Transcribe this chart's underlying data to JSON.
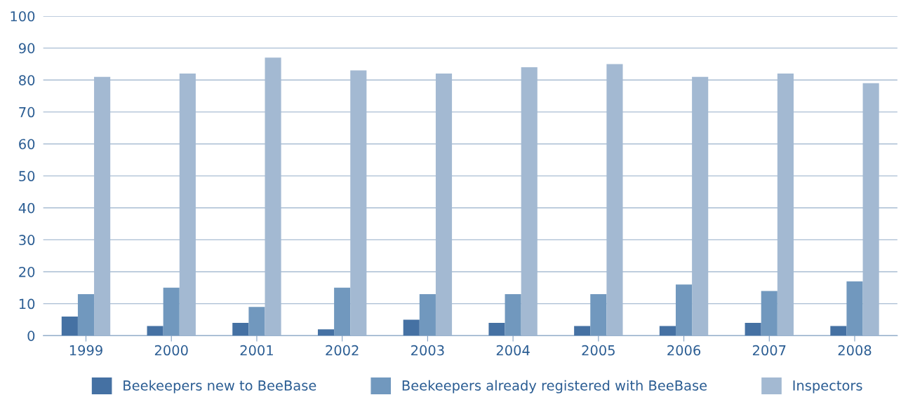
{
  "chart_data": {
    "type": "bar",
    "categories": [
      "1999",
      "2000",
      "2001",
      "2002",
      "2003",
      "2004",
      "2005",
      "2006",
      "2007",
      "2008"
    ],
    "series": [
      {
        "name": "Beekeepers new to BeeBase",
        "color": "#4571a3",
        "values": [
          6,
          3,
          4,
          2,
          5,
          4,
          3,
          3,
          4,
          3
        ]
      },
      {
        "name": "Beekeepers already registered with BeeBase",
        "color": "#7198be",
        "values": [
          13,
          15,
          9,
          15,
          13,
          13,
          13,
          16,
          14,
          17
        ]
      },
      {
        "name": "Inspectors",
        "color": "#a3b9d2",
        "values": [
          81,
          82,
          87,
          83,
          82,
          84,
          85,
          81,
          82,
          79
        ]
      }
    ],
    "ylim": [
      0,
      100
    ],
    "yticks": [
      0,
      10,
      20,
      30,
      40,
      50,
      60,
      70,
      80,
      90,
      100
    ],
    "grid": "y",
    "legend": "bottom"
  }
}
